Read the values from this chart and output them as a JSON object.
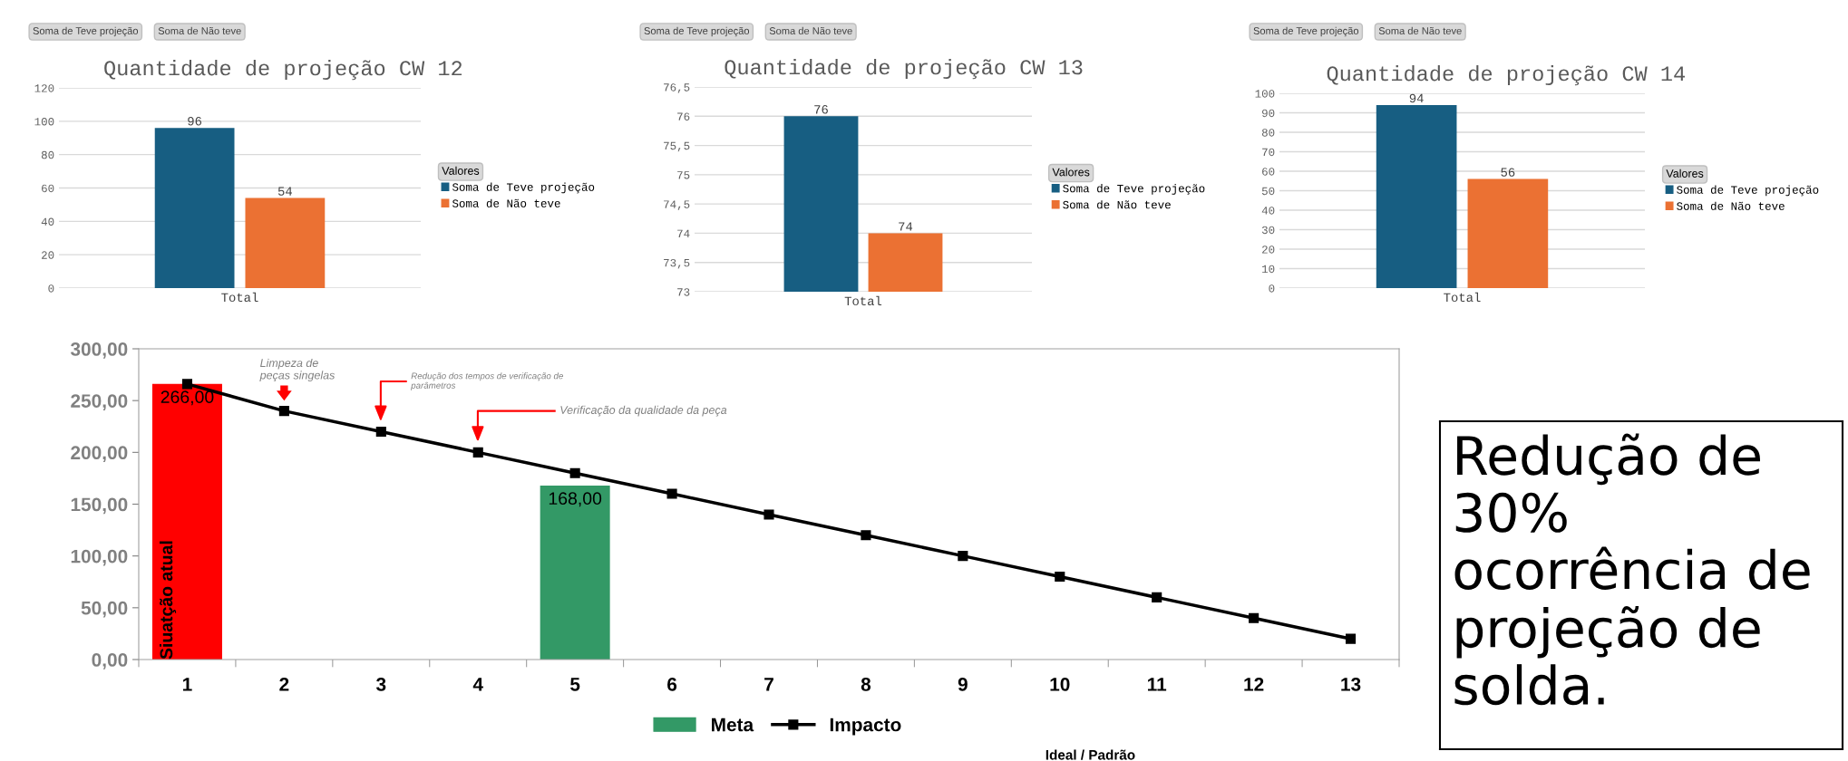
{
  "chart_data": [
    {
      "type": "bar",
      "title": "Quantidade de projeção CW 12",
      "categories": [
        "Total"
      ],
      "legend": "right",
      "legend_title": "Valores",
      "data_labels": true,
      "grid": "y",
      "ylim": [
        0,
        120
      ],
      "yticks": [
        0,
        20,
        40,
        60,
        80,
        100,
        120
      ],
      "annotations": [
        "Soma de Teve projeção",
        "Soma de Não teve"
      ],
      "series": [
        {
          "name": "Soma de Teve projeção",
          "color": "#175e82",
          "values": [
            96
          ]
        },
        {
          "name": "Soma de Não teve",
          "color": "#eb7133",
          "values": [
            54
          ]
        }
      ]
    },
    {
      "type": "bar",
      "title": "Quantidade de projeção CW 13",
      "categories": [
        "Total"
      ],
      "legend": "right",
      "legend_title": "Valores",
      "data_labels": true,
      "grid": "y",
      "ylim": [
        73,
        76.5
      ],
      "yticks": [
        73,
        {
          "value": 73.5,
          "label": "73,5"
        },
        74,
        {
          "value": 74.5,
          "label": "74,5"
        },
        75,
        {
          "value": 75.5,
          "label": "75,5"
        },
        76,
        {
          "value": 76.5,
          "label": "76,5"
        }
      ],
      "annotations": [
        "Soma de Teve projeção",
        "Soma de Não teve"
      ],
      "series": [
        {
          "name": "Soma de Teve projeção",
          "color": "#175e82",
          "values": [
            76
          ]
        },
        {
          "name": "Soma de Não teve",
          "color": "#eb7133",
          "values": [
            74
          ]
        }
      ]
    },
    {
      "type": "bar",
      "title": "Quantidade de projeção CW 14",
      "categories": [
        "Total"
      ],
      "legend": "right",
      "legend_title": "Valores",
      "data_labels": true,
      "grid": "y",
      "ylim": [
        0,
        100
      ],
      "yticks": [
        0,
        10,
        20,
        30,
        40,
        50,
        60,
        70,
        80,
        90,
        100
      ],
      "annotations": [
        "Soma de Teve projeção",
        "Soma de Não teve"
      ],
      "series": [
        {
          "name": "Soma de Teve projeção",
          "color": "#175e82",
          "values": [
            94
          ]
        },
        {
          "name": "Soma de Não teve",
          "color": "#eb7133",
          "values": [
            56
          ]
        }
      ]
    },
    {
      "type": "bar",
      "categories": [
        "1",
        "2",
        "3",
        "4",
        "5",
        "6",
        "7",
        "8",
        "9",
        "10",
        "11",
        "12",
        "13"
      ],
      "xlabel": "Ideal / Padrão",
      "legend": "bottom",
      "marker": "square",
      "ylim": [
        0,
        300
      ],
      "yticks": [
        {
          "value": 0,
          "label": "0,00"
        },
        {
          "value": 50,
          "label": "50,00"
        },
        {
          "value": 100,
          "label": "100,00"
        },
        {
          "value": 150,
          "label": "150,00"
        },
        {
          "value": 200,
          "label": "200,00"
        },
        {
          "value": 250,
          "label": "250,00"
        },
        {
          "value": 300,
          "label": "300,00"
        }
      ],
      "annotations": [
        {
          "text": "Siuatção atual",
          "x": "1",
          "y": 0
        },
        {
          "text": "Limpeza de\npeças singelas",
          "x": "2",
          "y": 240
        },
        "Redução dos tempos de verificação de\nparâmetros",
        "Verificação da qualidade da peça"
      ],
      "series": [
        {
          "name": "Meta",
          "type": "bar",
          "color": "#339966",
          "colors": [
            "#ff0000",
            "#339966",
            "#339966",
            "#339966",
            "#339966",
            "#339966",
            "#339966",
            "#339966",
            "#339966",
            "#339966",
            "#339966",
            "#339966",
            "#339966"
          ],
          "values": [
            266,
            null,
            null,
            null,
            168,
            null,
            null,
            null,
            null,
            null,
            null,
            null,
            null
          ],
          "value_labels": [
            "266,00",
            null,
            null,
            null,
            "168,00",
            null,
            null,
            null,
            null,
            null,
            null,
            null,
            null
          ]
        },
        {
          "name": "Impacto",
          "type": "line",
          "color": "#000000",
          "values": [
            266,
            240,
            220,
            200,
            180,
            160,
            140,
            120,
            100,
            80,
            60,
            40,
            20
          ]
        }
      ]
    },
    {
      "type": "other",
      "annotations": [
        "Redução de 30% ocorrência de projeção de solda."
      ]
    }
  ]
}
